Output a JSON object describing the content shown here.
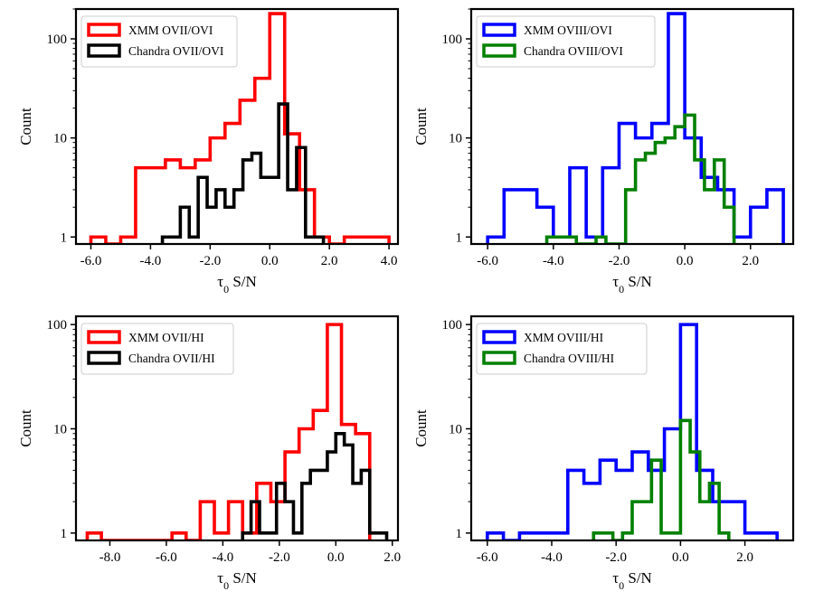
{
  "chart_data": [
    {
      "type": "histogram-step",
      "panel": "top-left",
      "xlabel_main": "τ",
      "xlabel_sub": "0",
      "xlabel_rest": " S/N",
      "ylabel": "Count",
      "yscale": "log",
      "ylim": [
        0.85,
        200
      ],
      "xlim": [
        -6.5,
        4.3
      ],
      "xticks": [
        -6,
        -4,
        -2,
        0,
        2,
        4
      ],
      "xtick_labels": [
        "-6.0",
        "-4.0",
        "-2.0",
        "0.0",
        "2.0",
        "4.0"
      ],
      "yticks": [
        1,
        10,
        100
      ],
      "ytick_labels": [
        "1",
        "10",
        "100"
      ],
      "legend_position": "top-left",
      "series": [
        {
          "name": "XMM OVII/OVI",
          "color": "#ff0000",
          "edges": [
            -6.0,
            -5.5,
            -5.0,
            -4.5,
            -4.0,
            -3.5,
            -3.0,
            -2.5,
            -2.0,
            -1.5,
            -1.0,
            -0.5,
            0.0,
            0.5,
            1.0,
            1.5,
            2.0,
            2.5,
            3.0,
            3.5,
            4.0
          ],
          "counts": [
            1,
            0,
            1,
            5,
            5,
            6,
            5,
            6,
            10,
            14,
            24,
            40,
            180,
            11,
            3,
            1,
            0,
            1,
            1,
            1
          ]
        },
        {
          "name": "Chandra OVII/OVI",
          "color": "#000000",
          "edges": [
            -3.6,
            -3.3,
            -3.0,
            -2.7,
            -2.4,
            -2.1,
            -1.8,
            -1.5,
            -1.2,
            -0.9,
            -0.6,
            -0.3,
            0.0,
            0.3,
            0.6,
            0.9,
            1.2,
            1.5,
            1.8
          ],
          "counts": [
            1,
            1,
            2,
            1,
            4,
            2,
            3,
            2,
            3,
            6,
            7,
            4,
            4,
            22,
            3,
            8,
            1,
            1
          ]
        }
      ]
    },
    {
      "type": "histogram-step",
      "panel": "top-right",
      "xlabel_main": "τ",
      "xlabel_sub": "0",
      "xlabel_rest": " S/N",
      "ylabel": "Count",
      "yscale": "log",
      "ylim": [
        0.85,
        200
      ],
      "xlim": [
        -6.5,
        3.3
      ],
      "xticks": [
        -6,
        -4,
        -2,
        0,
        2
      ],
      "xtick_labels": [
        "-6.0",
        "-4.0",
        "-2.0",
        "0.0",
        "2.0"
      ],
      "yticks": [
        1,
        10,
        100
      ],
      "ytick_labels": [
        "1",
        "10",
        "100"
      ],
      "legend_position": "top-left",
      "series": [
        {
          "name": "XMM OVIII/OVI",
          "color": "#0000ff",
          "edges": [
            -6.0,
            -5.5,
            -5.0,
            -4.5,
            -4.0,
            -3.5,
            -3.0,
            -2.5,
            -2.0,
            -1.5,
            -1.0,
            -0.5,
            0.0,
            0.5,
            1.0,
            1.5,
            2.0,
            2.5,
            3.0
          ],
          "counts": [
            1,
            3,
            3,
            2,
            1,
            5,
            1,
            5,
            14,
            10,
            14,
            180,
            10,
            4,
            3,
            1,
            2,
            3
          ]
        },
        {
          "name": "Chandra OVIII/OVI",
          "color": "#008000",
          "edges": [
            -4.2,
            -3.9,
            -3.6,
            -3.3,
            -3.0,
            -2.7,
            -2.4,
            -2.1,
            -1.8,
            -1.5,
            -1.2,
            -0.9,
            -0.6,
            -0.3,
            0.0,
            0.3,
            0.6,
            0.9,
            1.2,
            1.5
          ],
          "counts": [
            1,
            1,
            1,
            0,
            0,
            1,
            0,
            0,
            3,
            6,
            7,
            9,
            10,
            13,
            17,
            6,
            3,
            6,
            2
          ]
        }
      ]
    },
    {
      "type": "histogram-step",
      "panel": "bottom-left",
      "xlabel_main": "τ",
      "xlabel_sub": "0",
      "xlabel_rest": " S/N",
      "ylabel": "Count",
      "yscale": "log",
      "ylim": [
        0.85,
        120
      ],
      "xlim": [
        -9.2,
        2.2
      ],
      "xticks": [
        -8,
        -6,
        -4,
        -2,
        0,
        2
      ],
      "xtick_labels": [
        "-8.0",
        "-6.0",
        "-4.0",
        "-2.0",
        "0.0",
        "2.0"
      ],
      "yticks": [
        1,
        10,
        100
      ],
      "ytick_labels": [
        "1",
        "10",
        "100"
      ],
      "legend_position": "top-left",
      "series": [
        {
          "name": "XMM OVII/HI",
          "color": "#ff0000",
          "edges": [
            -8.8,
            -8.3,
            -7.8,
            -7.3,
            -6.8,
            -6.3,
            -5.8,
            -5.3,
            -4.8,
            -4.3,
            -3.8,
            -3.3,
            -2.8,
            -2.3,
            -1.8,
            -1.3,
            -0.8,
            -0.3,
            0.2,
            0.7,
            1.2
          ],
          "counts": [
            1,
            0,
            0,
            0,
            0,
            0,
            1,
            0,
            2,
            1,
            2,
            1,
            3,
            2,
            6,
            10,
            15,
            100,
            11,
            9
          ]
        },
        {
          "name": "Chandra OVII/HI",
          "color": "#000000",
          "edges": [
            -3.3,
            -3.0,
            -2.7,
            -2.4,
            -2.1,
            -1.8,
            -1.5,
            -1.2,
            -0.9,
            -0.6,
            -0.3,
            0.0,
            0.3,
            0.6,
            0.9,
            1.2,
            1.5,
            1.8
          ],
          "counts": [
            1,
            2,
            1,
            1,
            3,
            2,
            1,
            3,
            4,
            4,
            6,
            9,
            7,
            3,
            4,
            1,
            1
          ]
        }
      ]
    },
    {
      "type": "histogram-step",
      "panel": "bottom-right",
      "xlabel_main": "τ",
      "xlabel_sub": "0",
      "xlabel_rest": " S/N",
      "ylabel": "Count",
      "yscale": "log",
      "ylim": [
        0.85,
        120
      ],
      "xlim": [
        -6.5,
        3.5
      ],
      "xticks": [
        -6,
        -4,
        -2,
        0,
        2
      ],
      "xtick_labels": [
        "-6.0",
        "-4.0",
        "-2.0",
        "0.0",
        "2.0"
      ],
      "yticks": [
        1,
        10,
        100
      ],
      "ytick_labels": [
        "1",
        "10",
        "100"
      ],
      "legend_position": "top-left",
      "series": [
        {
          "name": "XMM OVIII/HI",
          "color": "#0000ff",
          "edges": [
            -6.0,
            -5.5,
            -5.0,
            -4.5,
            -4.0,
            -3.5,
            -3.0,
            -2.5,
            -2.0,
            -1.5,
            -1.0,
            -0.5,
            0.0,
            0.5,
            1.0,
            1.5,
            2.0,
            2.5,
            3.0
          ],
          "counts": [
            1,
            0,
            1,
            1,
            1,
            4,
            3,
            5,
            4,
            6,
            4,
            10,
            100,
            4,
            2,
            2,
            1,
            1
          ]
        },
        {
          "name": "Chandra OVIII/HI",
          "color": "#008000",
          "edges": [
            -2.7,
            -2.4,
            -2.1,
            -1.8,
            -1.5,
            -1.2,
            -0.9,
            -0.6,
            -0.3,
            0.0,
            0.3,
            0.6,
            0.9,
            1.2,
            1.5
          ],
          "counts": [
            1,
            1,
            0,
            1,
            2,
            2,
            5,
            1,
            1,
            12,
            6,
            2,
            3,
            1
          ]
        }
      ]
    }
  ]
}
